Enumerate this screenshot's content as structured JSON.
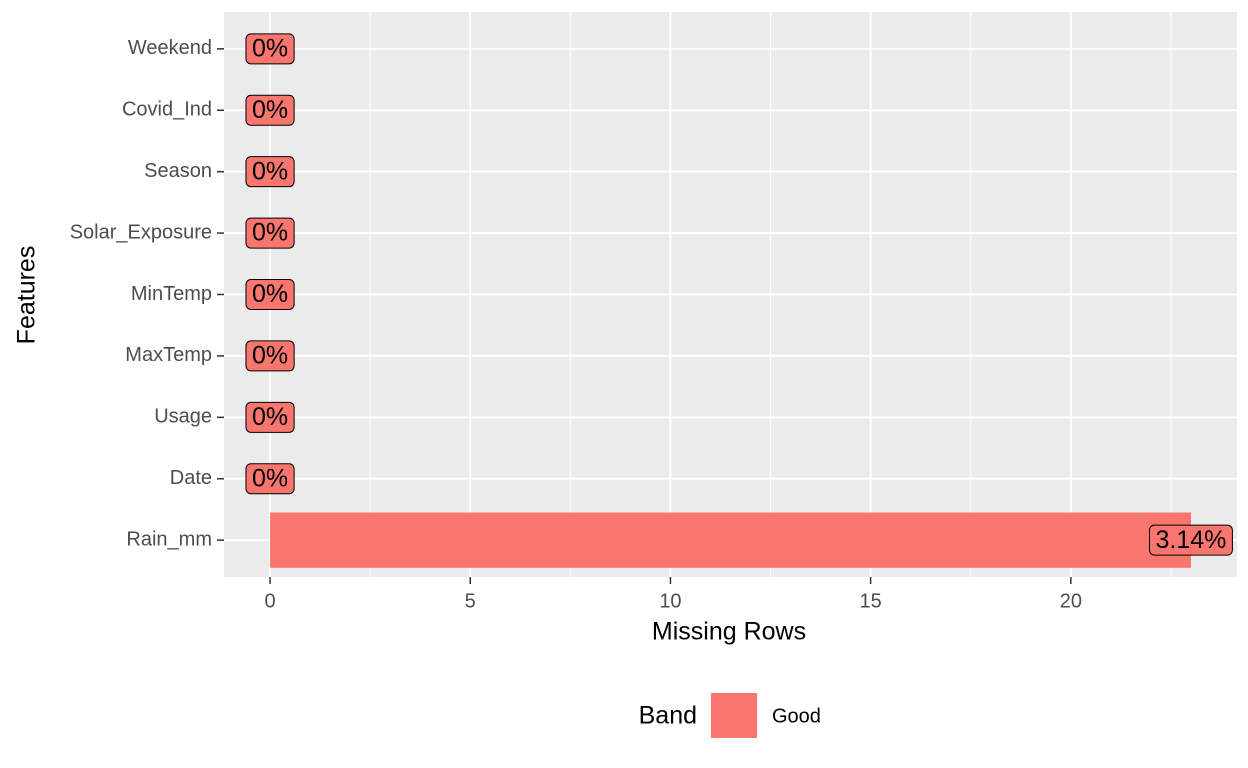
{
  "chart_data": {
    "type": "bar",
    "orientation": "horizontal",
    "x_label": "Missing Rows",
    "y_label": "Features",
    "categories": [
      "Weekend",
      "Covid_Ind",
      "Season",
      "Solar_Exposure",
      "MinTemp",
      "MaxTemp",
      "Usage",
      "Date",
      "Rain_mm"
    ],
    "values": [
      0,
      0,
      0,
      0,
      0,
      0,
      0,
      0,
      23
    ],
    "percent_labels": [
      "0%",
      "0%",
      "0%",
      "0%",
      "0%",
      "0%",
      "0%",
      "0%",
      "3.14%"
    ],
    "color": "#F8766D",
    "xlim": [
      -1.15,
      24.15
    ],
    "xticks": [
      0,
      5,
      10,
      15,
      20
    ],
    "x_minor_grid": [
      2.5,
      7.5,
      12.5,
      17.5,
      22.5
    ],
    "grid": true,
    "legend": {
      "position": "bottom",
      "title": "Band",
      "entries": [
        "Good"
      ]
    }
  }
}
